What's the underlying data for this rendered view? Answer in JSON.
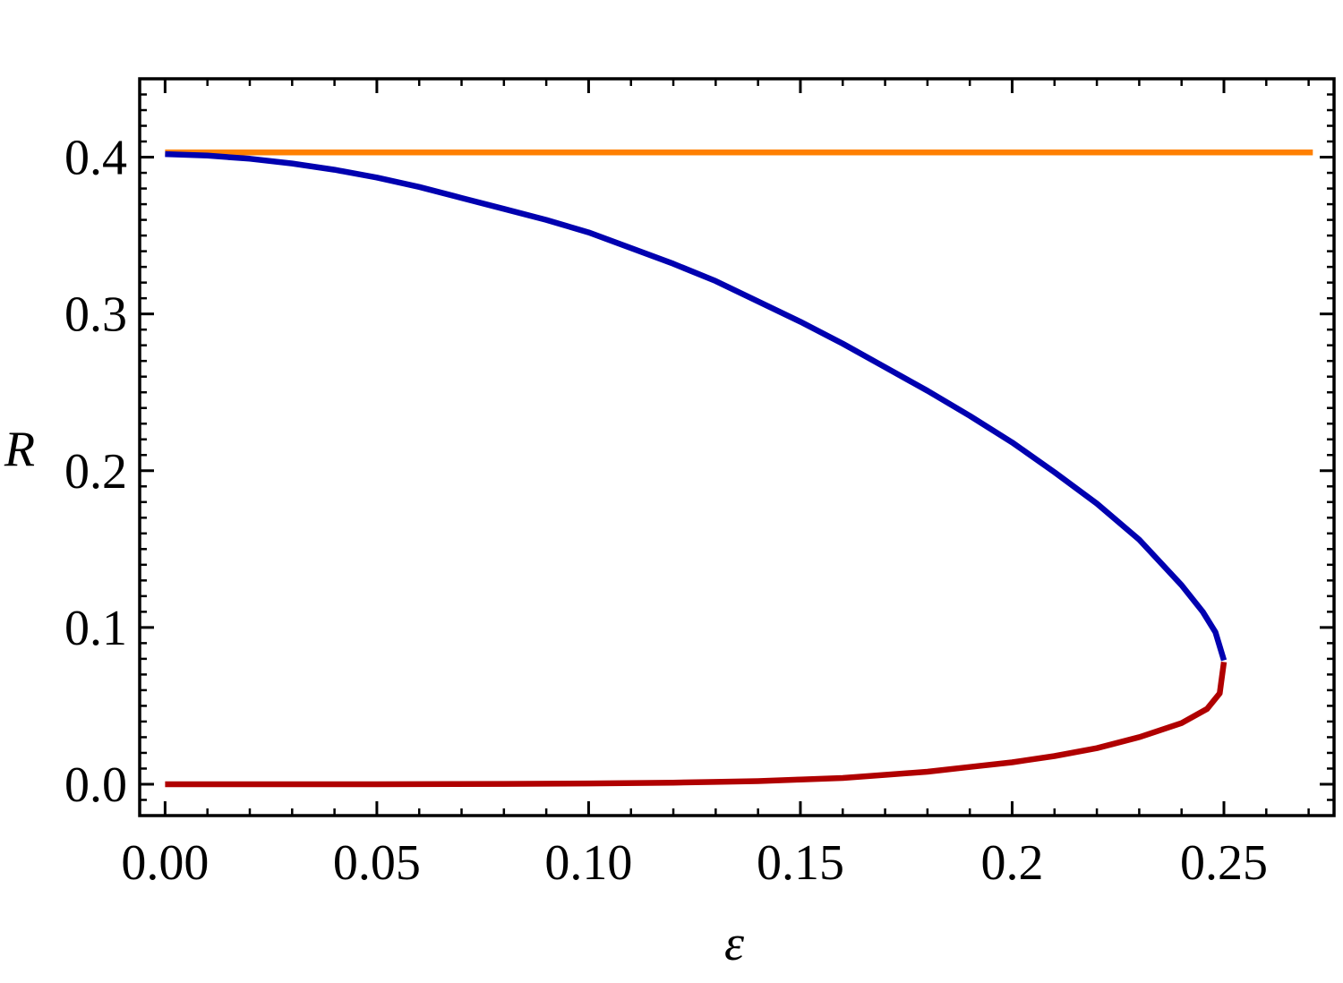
{
  "chart_data": {
    "type": "line",
    "title": "",
    "xlabel": "ε",
    "ylabel": "R",
    "xlim": [
      -0.006,
      0.276
    ],
    "ylim": [
      -0.02,
      0.45
    ],
    "grid": false,
    "legend": "none",
    "x_ticks": [
      {
        "value": 0.0,
        "label": "0.00"
      },
      {
        "value": 0.05,
        "label": "0.05"
      },
      {
        "value": 0.1,
        "label": "0.10"
      },
      {
        "value": 0.15,
        "label": "0.15"
      },
      {
        "value": 0.2,
        "label": "0.2"
      },
      {
        "value": 0.25,
        "label": "0.25"
      }
    ],
    "y_ticks": [
      {
        "value": 0.0,
        "label": "0.0"
      },
      {
        "value": 0.1,
        "label": "0.1"
      },
      {
        "value": 0.2,
        "label": "0.2"
      },
      {
        "value": 0.3,
        "label": "0.3"
      },
      {
        "value": 0.4,
        "label": "0.4"
      }
    ],
    "series": [
      {
        "color": "#ff8000",
        "points": [
          [
            0.0,
            0.403
          ],
          [
            0.271,
            0.403
          ]
        ]
      },
      {
        "color": "#0000b0",
        "points": [
          [
            0.0,
            0.402
          ],
          [
            0.01,
            0.401
          ],
          [
            0.02,
            0.399
          ],
          [
            0.03,
            0.396
          ],
          [
            0.04,
            0.392
          ],
          [
            0.05,
            0.387
          ],
          [
            0.06,
            0.381
          ],
          [
            0.07,
            0.374
          ],
          [
            0.08,
            0.367
          ],
          [
            0.09,
            0.36
          ],
          [
            0.1,
            0.352
          ],
          [
            0.11,
            0.342
          ],
          [
            0.12,
            0.332
          ],
          [
            0.13,
            0.321
          ],
          [
            0.14,
            0.308
          ],
          [
            0.15,
            0.295
          ],
          [
            0.16,
            0.281
          ],
          [
            0.17,
            0.266
          ],
          [
            0.18,
            0.251
          ],
          [
            0.19,
            0.235
          ],
          [
            0.2,
            0.218
          ],
          [
            0.21,
            0.199
          ],
          [
            0.22,
            0.179
          ],
          [
            0.23,
            0.156
          ],
          [
            0.24,
            0.127
          ],
          [
            0.245,
            0.11
          ],
          [
            0.248,
            0.097
          ],
          [
            0.25,
            0.079
          ]
        ]
      },
      {
        "color": "#b00000",
        "points": [
          [
            0.25,
            0.078
          ],
          [
            0.249,
            0.058
          ],
          [
            0.246,
            0.048
          ],
          [
            0.24,
            0.039
          ],
          [
            0.23,
            0.03
          ],
          [
            0.22,
            0.023
          ],
          [
            0.21,
            0.018
          ],
          [
            0.2,
            0.014
          ],
          [
            0.19,
            0.011
          ],
          [
            0.18,
            0.008
          ],
          [
            0.17,
            0.006
          ],
          [
            0.16,
            0.004
          ],
          [
            0.15,
            0.003
          ],
          [
            0.14,
            0.002
          ],
          [
            0.13,
            0.0015
          ],
          [
            0.12,
            0.001
          ],
          [
            0.1,
            0.0005
          ],
          [
            0.08,
            0.0002
          ],
          [
            0.05,
            0.0
          ],
          [
            0.0,
            0.0
          ]
        ]
      }
    ]
  }
}
